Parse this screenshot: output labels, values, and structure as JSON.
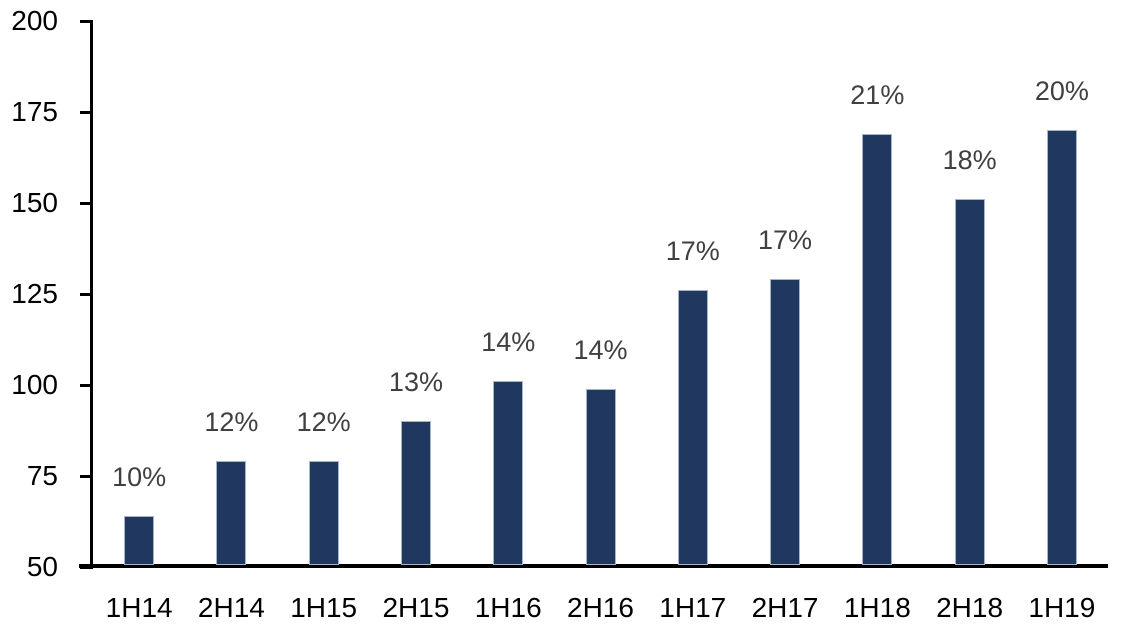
{
  "chart_data": {
    "type": "bar",
    "title": "",
    "subtitle": "",
    "xlabel": "",
    "ylabel": "",
    "categories": [
      "1H14",
      "2H14",
      "1H15",
      "2H15",
      "1H16",
      "2H16",
      "1H17",
      "2H17",
      "1H18",
      "2H18",
      "1H19"
    ],
    "values": [
      64,
      79,
      79,
      90,
      101,
      99,
      126,
      129,
      169,
      151,
      170
    ],
    "data_labels": [
      "10%",
      "12%",
      "12%",
      "13%",
      "14%",
      "14%",
      "17%",
      "17%",
      "21%",
      "18%",
      "20%"
    ],
    "ylim": [
      50,
      200
    ],
    "yticks": [
      50,
      75,
      100,
      125,
      150,
      175,
      200
    ],
    "grid": false,
    "legend_position": "none",
    "colors": {
      "bar_fill": "#20385F",
      "bar_border": "#A6B4C8",
      "data_label": "#404040",
      "axis": "#000000",
      "tick_label": "#000000",
      "background": "#FFFFFF"
    }
  }
}
